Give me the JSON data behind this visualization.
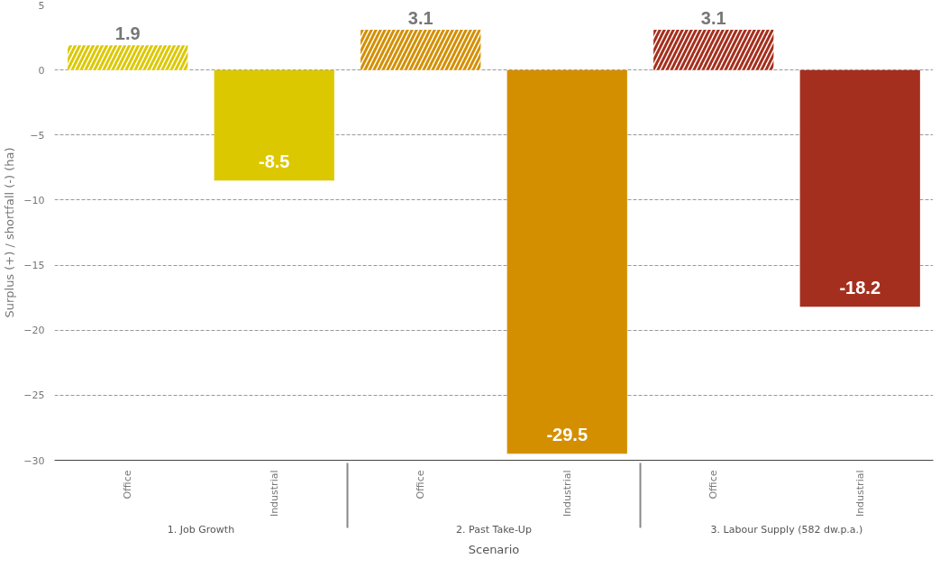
{
  "chart_data": {
    "type": "bar",
    "categories": [
      "Office",
      "Industrial",
      "Office",
      "Industrial",
      "Office",
      "Industrial"
    ],
    "annotations": [
      "1. Job Growth",
      "2. Past Take-Up",
      "3. Labour Supply (582 dw.p.a.)"
    ],
    "values": [
      1.9,
      -8.5,
      3.1,
      -29.5,
      3.1,
      -18.2
    ],
    "colors": [
      "#dcc800",
      "#dcc800",
      "#d48f00",
      "#d48f00",
      "#a52f1e",
      "#a52f1e"
    ],
    "ylim": [
      -30,
      5
    ],
    "yticks": [
      -30,
      -25,
      -20,
      -15,
      -10,
      -5,
      0,
      5
    ],
    "ylabel": "Surplus (+) / shortfall (-) (ha)",
    "xlabel": "Scenario",
    "grid": "y",
    "data_labels": true
  }
}
